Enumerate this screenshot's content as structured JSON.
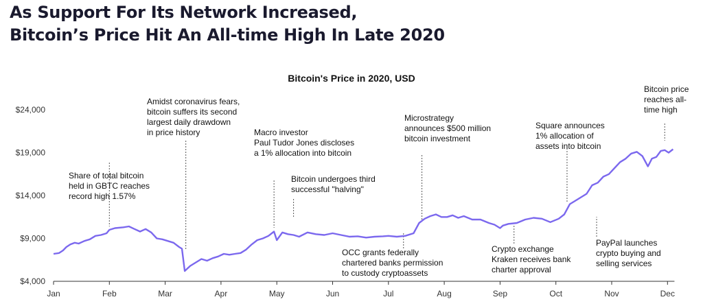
{
  "headline": {
    "line1": "As Support For Its Network Increased,",
    "line2": "Bitcoin’s Price Hit An All-time High In Late 2020"
  },
  "colors": {
    "line": "#7b68ee",
    "text": "#111111",
    "axis": "#333333",
    "annotation_line": "#555555"
  },
  "chart_data": {
    "type": "line",
    "title": "Bitcoin's Price in 2020, USD",
    "xlabel": "",
    "ylabel": "",
    "x_ticks": [
      "Jan",
      "Feb",
      "Mar",
      "Apr",
      "May",
      "Jun",
      "Jul",
      "Aug",
      "Sep",
      "Oct",
      "Nov",
      "Dec"
    ],
    "y_ticks": [
      "$4,000",
      "$9,000",
      "$14,000",
      "$19,000",
      "$24,000"
    ],
    "ylim": [
      4000,
      24000
    ],
    "xlim": [
      0,
      11.1
    ],
    "grid": false,
    "series": [
      {
        "x": [
          0,
          0.1,
          0.17,
          0.23,
          0.3,
          0.38,
          0.45,
          0.55,
          0.65,
          0.75,
          0.85,
          0.95,
          1.0,
          1.1,
          1.25,
          1.35,
          1.45,
          1.55,
          1.65,
          1.75,
          1.85,
          1.95,
          2.05,
          2.15,
          2.25,
          2.3,
          2.35,
          2.4,
          2.45,
          2.55,
          2.65,
          2.75,
          2.85,
          2.95,
          3.05,
          3.15,
          3.25,
          3.35,
          3.45,
          3.55,
          3.65,
          3.75,
          3.85,
          3.95,
          4.0,
          4.1,
          4.2,
          4.3,
          4.4,
          4.55,
          4.7,
          4.85,
          5.0,
          5.15,
          5.3,
          5.45,
          5.6,
          5.75,
          5.9,
          6.0,
          6.15,
          6.3,
          6.45,
          6.55,
          6.65,
          6.75,
          6.85,
          6.95,
          7.05,
          7.15,
          7.25,
          7.35,
          7.5,
          7.65,
          7.8,
          7.9,
          8.0,
          8.05,
          8.15,
          8.3,
          8.45,
          8.6,
          8.75,
          8.9,
          9.05,
          9.15,
          9.25,
          9.35,
          9.45,
          9.55,
          9.65,
          9.75,
          9.85,
          9.95,
          10.05,
          10.15,
          10.25,
          10.35,
          10.45,
          10.55,
          10.65,
          10.72,
          10.8,
          10.88,
          10.95,
          11.02,
          11.1
        ],
        "values": [
          7200,
          7300,
          7600,
          8000,
          8300,
          8500,
          8400,
          8700,
          8900,
          9300,
          9400,
          9600,
          10000,
          10200,
          10300,
          10400,
          10100,
          9800,
          10100,
          9700,
          9000,
          8900,
          8700,
          8500,
          8000,
          7800,
          5200,
          5500,
          5800,
          6200,
          6600,
          6400,
          6700,
          6900,
          7200,
          7100,
          7200,
          7300,
          7700,
          8300,
          8800,
          9000,
          9300,
          9800,
          8800,
          9700,
          9500,
          9400,
          9200,
          9700,
          9500,
          9400,
          9600,
          9400,
          9200,
          9250,
          9100,
          9200,
          9250,
          9300,
          9200,
          9300,
          9600,
          10800,
          11300,
          11600,
          11800,
          11500,
          11500,
          11700,
          11400,
          11600,
          11200,
          11200,
          10800,
          10600,
          10200,
          10500,
          10700,
          10800,
          11200,
          11400,
          11300,
          10900,
          11300,
          11800,
          13000,
          13400,
          13800,
          14200,
          15200,
          15500,
          16200,
          16500,
          17200,
          17900,
          18300,
          18900,
          19100,
          18600,
          17400,
          18300,
          18500,
          19200,
          19300,
          19000,
          19400
        ]
      }
    ],
    "annotations": [
      {
        "id": "gbtc",
        "lines": [
          "Share of total bitcoin",
          "held in GBTC reaches",
          "record high 1.57%"
        ],
        "x": 1.0,
        "y": 9600
      },
      {
        "id": "covid",
        "lines": [
          "Amidst coronavirus fears,",
          "bitcoin suffers its second",
          "largest daily drawdown",
          "in price history"
        ],
        "x": 2.37,
        "y": 5500
      },
      {
        "id": "ptj",
        "lines": [
          "Macro investor",
          "Paul Tudor Jones discloses",
          "a 1% allocation into bitcoin"
        ],
        "x": 3.95,
        "y": 9600
      },
      {
        "id": "halving",
        "lines": [
          "Bitcoin undergoes third",
          "successful \"halving\""
        ],
        "x": 4.3,
        "y": 11000
      },
      {
        "id": "occ",
        "lines": [
          "OCC grants federally",
          "chartered banks permission",
          "to custody cryptoassets"
        ],
        "x": 6.27,
        "y": 9300
      },
      {
        "id": "microstrategy",
        "lines": [
          "Microstrategy",
          "announces $500 million",
          "bitcoin investment"
        ],
        "x": 6.6,
        "y": 11000
      },
      {
        "id": "kraken",
        "lines": [
          "Crypto exchange",
          "Kraken receives bank",
          "charter approval"
        ],
        "x": 8.25,
        "y": 10700
      },
      {
        "id": "square",
        "lines": [
          "Square announces",
          "1% allocation of",
          "assets into bitcoin"
        ],
        "x": 9.2,
        "y": 13000
      },
      {
        "id": "paypal",
        "lines": [
          "PayPal launches",
          "crypto buying and",
          "selling services"
        ],
        "x": 9.73,
        "y": 12000
      },
      {
        "id": "ath",
        "lines": [
          "Bitcoin price",
          "reaches all-",
          "time high"
        ],
        "x": 10.95,
        "y": 20000
      }
    ]
  }
}
